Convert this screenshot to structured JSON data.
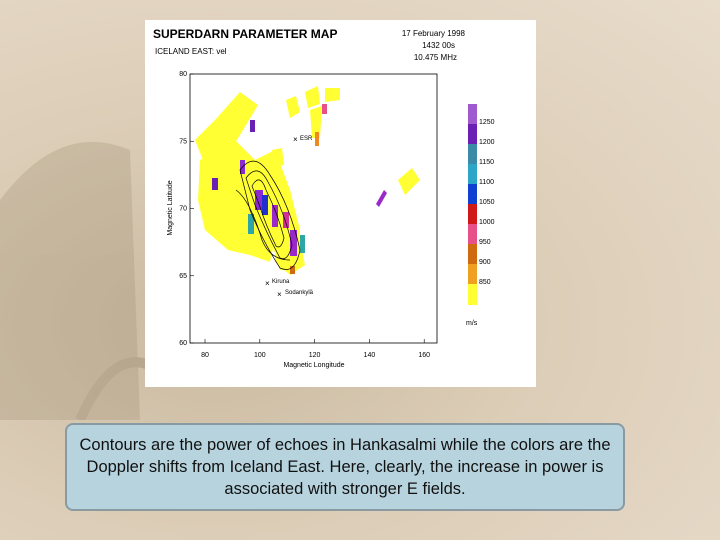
{
  "figure": {
    "title": "SUPERDARN PARAMETER MAP",
    "subtitle": "ICELAND EAST: vel",
    "date": "17 February 1998",
    "time": "1432 00s",
    "frequency": "10.475 MHz",
    "y_axis": {
      "label": "Magnetic Latitude",
      "ticks": [
        80,
        75,
        70,
        65,
        60
      ]
    },
    "x_axis": {
      "label": "Magnetic Longitude",
      "ticks": [
        80,
        100,
        120,
        140,
        160
      ]
    },
    "colorbar": {
      "labels": [
        1250,
        1200,
        1150,
        1100,
        1050,
        1000,
        950,
        900,
        850
      ],
      "unit": "m/s"
    },
    "stations": [
      "ESR",
      "Kiruna",
      "Sodankylä"
    ]
  },
  "caption": "Contours are the power of echoes in Hankasalmi while the colors are the Doppler shifts from Iceland East. Here, clearly, the increase in power is associated with stronger  E fields."
}
